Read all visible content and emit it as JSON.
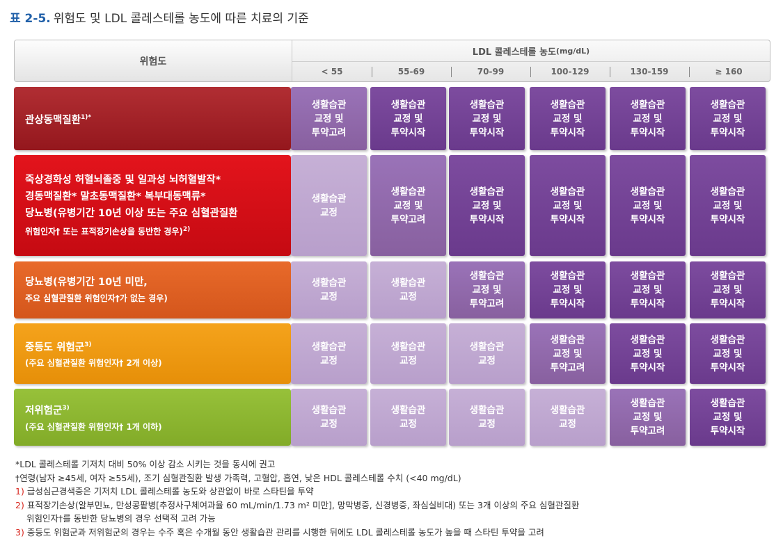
{
  "title": {
    "number": "표 2-5.",
    "text": "위험도 및 LDL 콜레스테롤 농도에 따른 치료의 기준"
  },
  "header": {
    "risk_label": "위험도",
    "ldl_label": "LDL 콜레스테롤 농도",
    "ldl_unit": "(mg/dL)",
    "ranges": [
      "< 55",
      "55-69",
      "70-99",
      "100-129",
      "130-159",
      "≥ 160"
    ]
  },
  "rows": [
    {
      "risk_lines": [
        {
          "text": "관상동맥질환",
          "sup": "1)*"
        }
      ],
      "sub_lines": [],
      "cells": [
        {
          "text": "생활습관\n교정 및\n투약고려",
          "shade": "md"
        },
        {
          "text": "생활습관\n교정 및\n투약시작",
          "shade": "dk"
        },
        {
          "text": "생활습관\n교정 및\n투약시작",
          "shade": "dk"
        },
        {
          "text": "생활습관\n교정 및\n투약시작",
          "shade": "dk"
        },
        {
          "text": "생활습관\n교정 및\n투약시작",
          "shade": "dk"
        },
        {
          "text": "생활습관\n교정 및\n투약시작",
          "shade": "dk"
        }
      ]
    },
    {
      "risk_lines": [
        {
          "text": "죽상경화성 허혈뇌졸중 및 일과성 뇌허혈발작*",
          "sup": ""
        },
        {
          "text": "경동맥질환*   말초동맥질환*   복부대동맥류*",
          "sup": ""
        },
        {
          "text": "당뇨병(유병기간 10년 이상 또는 주요 심혈관질환",
          "sup": ""
        }
      ],
      "sub_lines": [
        {
          "text": "위험인자† 또는 표적장기손상을 동반한 경우)",
          "sup": "2)"
        }
      ],
      "cells": [
        {
          "text": "생활습관\n교정",
          "shade": "lt"
        },
        {
          "text": "생활습관\n교정 및\n투약고려",
          "shade": "md"
        },
        {
          "text": "생활습관\n교정 및\n투약시작",
          "shade": "dk"
        },
        {
          "text": "생활습관\n교정 및\n투약시작",
          "shade": "dk"
        },
        {
          "text": "생활습관\n교정 및\n투약시작",
          "shade": "dk"
        },
        {
          "text": "생활습관\n교정 및\n투약시작",
          "shade": "dk"
        }
      ]
    },
    {
      "risk_lines": [
        {
          "text": "당뇨병(유병기간 10년 미만,",
          "sup": ""
        }
      ],
      "sub_lines": [
        {
          "text": "주요 심혈관질환 위험인자†가 없는 경우)",
          "sup": ""
        }
      ],
      "cells": [
        {
          "text": "생활습관\n교정",
          "shade": "lt"
        },
        {
          "text": "생활습관\n교정",
          "shade": "lt"
        },
        {
          "text": "생활습관\n교정 및\n투약고려",
          "shade": "md"
        },
        {
          "text": "생활습관\n교정 및\n투약시작",
          "shade": "dk"
        },
        {
          "text": "생활습관\n교정 및\n투약시작",
          "shade": "dk"
        },
        {
          "text": "생활습관\n교정 및\n투약시작",
          "shade": "dk"
        }
      ]
    },
    {
      "risk_lines": [
        {
          "text": "중등도 위험군",
          "sup": "3)"
        }
      ],
      "sub_lines": [
        {
          "text": "(주요 심혈관질환 위험인자† 2개 이상)",
          "sup": ""
        }
      ],
      "cells": [
        {
          "text": "생활습관\n교정",
          "shade": "lt"
        },
        {
          "text": "생활습관\n교정",
          "shade": "lt"
        },
        {
          "text": "생활습관\n교정",
          "shade": "lt"
        },
        {
          "text": "생활습관\n교정 및\n투약고려",
          "shade": "md"
        },
        {
          "text": "생활습관\n교정 및\n투약시작",
          "shade": "dk"
        },
        {
          "text": "생활습관\n교정 및\n투약시작",
          "shade": "dk"
        }
      ]
    },
    {
      "risk_lines": [
        {
          "text": "저위험군",
          "sup": "3)"
        }
      ],
      "sub_lines": [
        {
          "text": "(주요 심혈관질환 위험인자† 1개 이하)",
          "sup": ""
        }
      ],
      "cells": [
        {
          "text": "생활습관\n교정",
          "shade": "lt"
        },
        {
          "text": "생활습관\n교정",
          "shade": "lt"
        },
        {
          "text": "생활습관\n교정",
          "shade": "lt"
        },
        {
          "text": "생활습관\n교정",
          "shade": "lt"
        },
        {
          "text": "생활습관\n교정 및\n투약고려",
          "shade": "md"
        },
        {
          "text": "생활습관\n교정 및\n투약시작",
          "shade": "dk"
        }
      ]
    }
  ],
  "notes": [
    {
      "ref": "",
      "text": "*LDL 콜레스테롤 기저치 대비 50% 이상 감소 시키는 것을 동시에 권고"
    },
    {
      "ref": "",
      "text": "†연령(남자 ≥45세, 여자 ≥55세), 조기 심혈관질환 발생 가족력, 고혈압, 흡연, 낮은 HDL 콜레스테롤 수치 (<40 mg/dL)"
    },
    {
      "ref": "1)",
      "text": " 급성심근경색증은 기저치 LDL 콜레스테롤 농도와 상관없이 바로 스타틴을 투약"
    },
    {
      "ref": "2)",
      "text": " 표적장기손상(알부민뇨, 만성콩팥병[추정사구체여과율 60 mL/min/1.73 m² 미만], 망막병증, 신경병증, 좌심실비대) 또는 3개 이상의 주요 심혈관질환"
    },
    {
      "ref": "",
      "text": "위험인자†를 동반한 당뇨병의 경우 선택적 고려 가능",
      "indent": true
    },
    {
      "ref": "3)",
      "text": " 중등도 위험군과 저위험군의 경우는 수주 혹은 수개월 동안 생활습관 관리를 시행한 뒤에도 LDL 콜레스테롤 농도가 높을 때 스타틴 투약을 고려"
    }
  ]
}
